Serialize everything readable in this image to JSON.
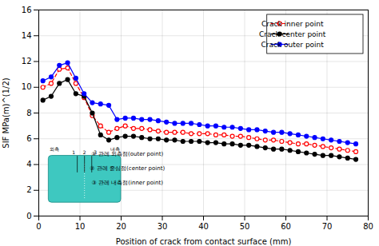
{
  "chart_data": {
    "type": "line",
    "xlabel": "Position of crack from contact surface (mm)",
    "ylabel": "SIF MPa(m)^(1/2)",
    "x": [
      1,
      3,
      5,
      7,
      9,
      11,
      13,
      15,
      17,
      19,
      21,
      23,
      25,
      27,
      29,
      31,
      33,
      35,
      37,
      39,
      41,
      43,
      45,
      47,
      49,
      51,
      53,
      55,
      57,
      59,
      61,
      63,
      65,
      67,
      69,
      71,
      73,
      75,
      77
    ],
    "series": [
      {
        "name": "Crack inner point",
        "color": "red",
        "line_style": "dashed",
        "marker": "hollow",
        "values": [
          10.0,
          10.3,
          11.4,
          11.5,
          10.3,
          9.2,
          7.8,
          7.0,
          6.5,
          6.8,
          7.0,
          6.8,
          6.8,
          6.7,
          6.6,
          6.5,
          6.5,
          6.5,
          6.4,
          6.4,
          6.4,
          6.3,
          6.3,
          6.2,
          6.2,
          6.1,
          6.0,
          5.9,
          5.9,
          5.8,
          5.7,
          5.6,
          5.6,
          5.5,
          5.4,
          5.3,
          5.2,
          5.1,
          5.0
        ]
      },
      {
        "name": "Crack center point",
        "color": "black",
        "line_style": "solid",
        "marker": "circle",
        "values": [
          9.0,
          9.3,
          10.3,
          10.6,
          9.5,
          9.3,
          8.0,
          6.3,
          5.9,
          6.1,
          6.2,
          6.2,
          6.1,
          6.0,
          6.0,
          5.9,
          5.9,
          5.8,
          5.8,
          5.8,
          5.7,
          5.7,
          5.6,
          5.6,
          5.5,
          5.5,
          5.4,
          5.3,
          5.2,
          5.2,
          5.1,
          5.0,
          4.9,
          4.8,
          4.7,
          4.7,
          4.6,
          4.5,
          4.4
        ]
      },
      {
        "name": "Crack outer point",
        "color": "blue",
        "line_style": "solid",
        "marker": "circle",
        "values": [
          10.5,
          10.8,
          11.7,
          11.9,
          10.7,
          9.5,
          8.8,
          8.7,
          8.6,
          7.5,
          7.6,
          7.6,
          7.5,
          7.5,
          7.4,
          7.3,
          7.2,
          7.2,
          7.2,
          7.1,
          7.0,
          7.0,
          6.9,
          6.9,
          6.8,
          6.7,
          6.7,
          6.6,
          6.5,
          6.5,
          6.4,
          6.3,
          6.2,
          6.1,
          6.0,
          5.9,
          5.8,
          5.7,
          5.6
        ]
      }
    ],
    "xlim": [
      0,
      80
    ],
    "ylim": [
      0,
      16
    ],
    "xticks": [
      0,
      10,
      20,
      30,
      40,
      50,
      60,
      70,
      80
    ],
    "yticks": [
      0,
      2,
      4,
      6,
      8,
      10,
      12,
      14,
      16
    ],
    "grid": true,
    "legend": "upper right",
    "annotations": [
      "1",
      "2",
      "3",
      "외측",
      "내측",
      "① 관레 외측점(outer point)",
      "② 관레 중심점(center point)",
      "③ 관레 내측점(inner point)"
    ]
  }
}
